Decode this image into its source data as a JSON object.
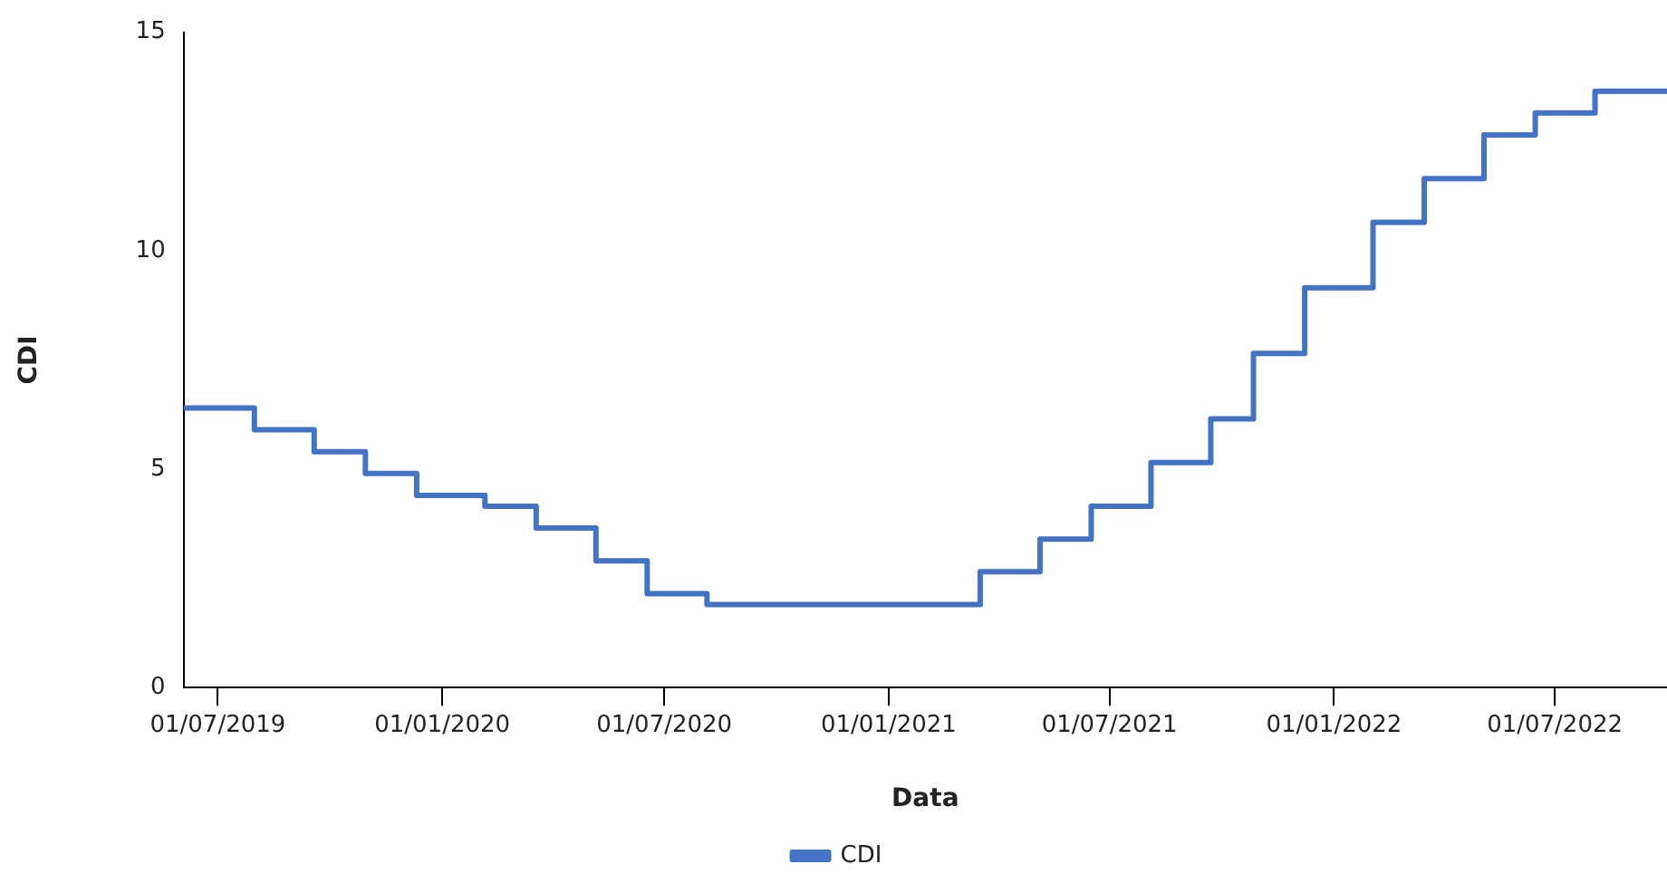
{
  "chart_data": {
    "type": "step",
    "xlabel": "Data",
    "ylabel": "CDI",
    "x": [
      "2019-06-03",
      "2019-07-31",
      "2019-09-18",
      "2019-10-30",
      "2019-12-11",
      "2020-02-05",
      "2020-03-18",
      "2020-05-06",
      "2020-06-17",
      "2020-08-05",
      "2021-03-17",
      "2021-05-05",
      "2021-06-16",
      "2021-08-04",
      "2021-09-22",
      "2021-10-27",
      "2021-12-08",
      "2022-02-02",
      "2022-03-16",
      "2022-05-04",
      "2022-06-15",
      "2022-08-03",
      "2022-10-01"
    ],
    "series": [
      {
        "name": "CDI",
        "color": "#4472c4",
        "values": [
          6.4,
          5.9,
          5.4,
          4.9,
          4.4,
          4.15,
          3.65,
          2.9,
          2.15,
          1.9,
          2.65,
          3.4,
          4.15,
          5.15,
          6.15,
          7.65,
          9.15,
          10.65,
          11.65,
          12.65,
          13.15,
          13.65,
          13.65
        ]
      }
    ],
    "xlim": [
      "2019-06-03",
      "2022-10-01"
    ],
    "xticks": [
      {
        "value": "2019-07-01",
        "label": "01/07/2019"
      },
      {
        "value": "2020-01-01",
        "label": "01/01/2020"
      },
      {
        "value": "2020-07-01",
        "label": "01/07/2020"
      },
      {
        "value": "2021-01-01",
        "label": "01/01/2021"
      },
      {
        "value": "2021-07-01",
        "label": "01/07/2021"
      },
      {
        "value": "2022-01-01",
        "label": "01/01/2022"
      },
      {
        "value": "2022-07-01",
        "label": "01/07/2022"
      }
    ],
    "ylim": [
      0,
      15
    ],
    "yticks": [
      0,
      5,
      10,
      15
    ],
    "grid": false,
    "legend": "bottom",
    "marker": "none",
    "line_style": "solid"
  }
}
